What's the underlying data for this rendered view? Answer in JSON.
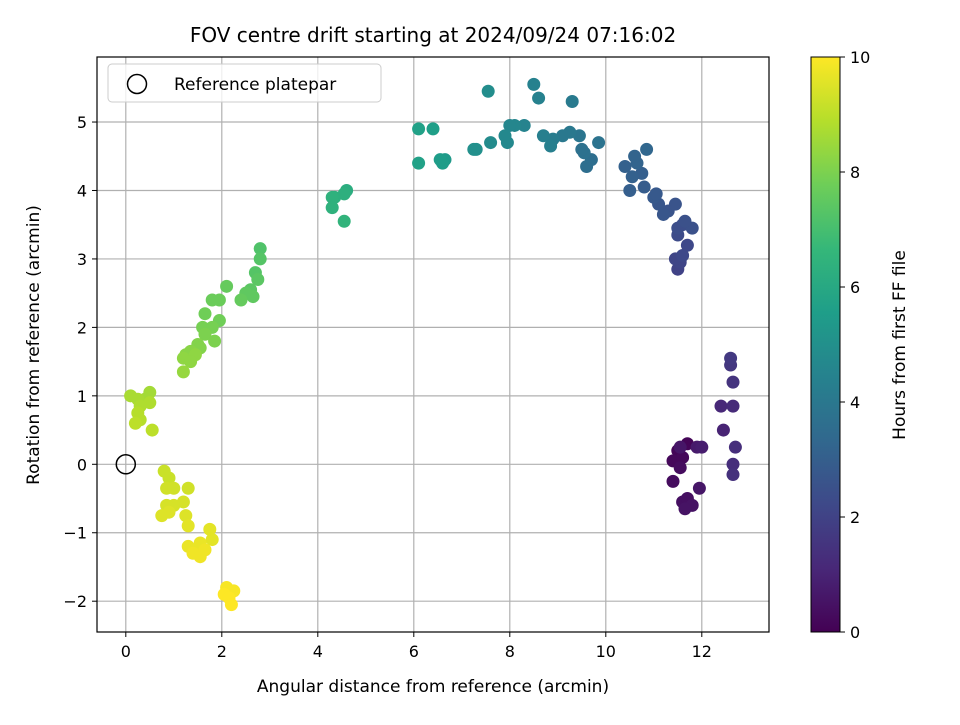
{
  "chart_data": {
    "type": "scatter",
    "title": "FOV centre drift starting at 2024/09/24 07:16:02",
    "xlabel": "Angular distance from reference (arcmin)",
    "ylabel": "Rotation from reference (arcmin)",
    "xlim": [
      -0.6,
      13.4
    ],
    "ylim": [
      -2.45,
      5.95
    ],
    "xticks": [
      0,
      2,
      4,
      6,
      8,
      10,
      12
    ],
    "yticks": [
      -2,
      -1,
      0,
      1,
      2,
      3,
      4,
      5
    ],
    "grid": true,
    "legend": {
      "location": "upper-left",
      "entries": [
        "Reference platepar"
      ]
    },
    "reference_point": {
      "x": 0,
      "y": 0,
      "label": "Reference platepar"
    },
    "colorbar": {
      "label": "Hours from first FF file",
      "range": [
        0,
        10
      ],
      "ticks": [
        0,
        2,
        4,
        6,
        8,
        10
      ],
      "colormap": "viridis",
      "colormap_stops": [
        "#440154",
        "#482878",
        "#3e4989",
        "#31688e",
        "#26828e",
        "#1f9e89",
        "#35b779",
        "#6ece58",
        "#b5de2b",
        "#fde725"
      ]
    },
    "series": [
      {
        "points": [
          [
            11.5,
            0.2,
            0.1
          ],
          [
            11.7,
            0.3,
            0.1
          ],
          [
            11.4,
            0.05,
            0.2
          ],
          [
            11.6,
            0.1,
            0.2
          ],
          [
            11.55,
            -0.05,
            0.3
          ],
          [
            11.4,
            -0.25,
            0.3
          ],
          [
            11.6,
            -0.55,
            0.4
          ],
          [
            11.7,
            -0.5,
            0.4
          ],
          [
            11.8,
            -0.6,
            0.5
          ],
          [
            11.65,
            -0.65,
            0.5
          ],
          [
            11.55,
            0.25,
            0.6
          ],
          [
            11.95,
            -0.35,
            0.6
          ],
          [
            11.9,
            0.25,
            0.7
          ],
          [
            12.0,
            0.25,
            0.8
          ],
          [
            12.45,
            0.5,
            1.0
          ],
          [
            12.4,
            0.85,
            1.1
          ],
          [
            12.65,
            0.85,
            1.2
          ],
          [
            12.7,
            0.25,
            1.3
          ],
          [
            12.65,
            0.0,
            1.3
          ],
          [
            12.65,
            -0.15,
            1.4
          ],
          [
            12.65,
            1.2,
            1.5
          ],
          [
            12.6,
            1.45,
            1.6
          ],
          [
            12.6,
            1.55,
            1.7
          ],
          [
            11.5,
            2.85,
            2.0
          ],
          [
            11.55,
            2.95,
            2.1
          ],
          [
            11.45,
            3.0,
            2.1
          ],
          [
            11.6,
            3.05,
            2.2
          ],
          [
            11.7,
            3.2,
            2.2
          ],
          [
            11.5,
            3.35,
            2.3
          ],
          [
            11.5,
            3.45,
            2.4
          ],
          [
            11.6,
            3.5,
            2.4
          ],
          [
            11.8,
            3.45,
            2.5
          ],
          [
            11.65,
            3.55,
            2.5
          ],
          [
            11.3,
            3.7,
            2.6
          ],
          [
            11.45,
            3.8,
            2.6
          ],
          [
            11.2,
            3.65,
            2.7
          ],
          [
            11.1,
            3.8,
            2.7
          ],
          [
            11.0,
            3.9,
            2.8
          ],
          [
            11.05,
            3.95,
            2.8
          ],
          [
            10.8,
            4.05,
            2.9
          ],
          [
            10.5,
            4.0,
            3.0
          ],
          [
            10.75,
            4.25,
            3.0
          ],
          [
            10.55,
            4.2,
            3.1
          ],
          [
            10.4,
            4.35,
            3.1
          ],
          [
            10.65,
            4.4,
            3.2
          ],
          [
            10.6,
            4.5,
            3.2
          ],
          [
            10.85,
            4.6,
            3.3
          ],
          [
            9.6,
            4.35,
            3.6
          ],
          [
            9.7,
            4.45,
            3.6
          ],
          [
            9.55,
            4.55,
            3.7
          ],
          [
            9.5,
            4.6,
            3.7
          ],
          [
            9.85,
            4.7,
            3.8
          ],
          [
            9.45,
            4.8,
            3.9
          ],
          [
            9.25,
            4.85,
            4.0
          ],
          [
            9.1,
            4.8,
            4.0
          ],
          [
            9.3,
            5.3,
            4.1
          ],
          [
            8.9,
            4.75,
            4.2
          ],
          [
            8.85,
            4.65,
            4.3
          ],
          [
            8.7,
            4.8,
            4.3
          ],
          [
            8.6,
            5.35,
            4.4
          ],
          [
            8.5,
            5.55,
            4.4
          ],
          [
            8.3,
            4.95,
            4.5
          ],
          [
            8.1,
            4.95,
            4.6
          ],
          [
            8.0,
            4.95,
            4.6
          ],
          [
            7.9,
            4.8,
            4.7
          ],
          [
            7.95,
            4.7,
            4.7
          ],
          [
            7.6,
            4.7,
            4.8
          ],
          [
            7.55,
            5.45,
            4.9
          ],
          [
            7.3,
            4.6,
            5.0
          ],
          [
            7.25,
            4.6,
            5.0
          ],
          [
            6.65,
            4.45,
            5.4
          ],
          [
            6.6,
            4.4,
            5.5
          ],
          [
            6.55,
            4.45,
            5.5
          ],
          [
            6.4,
            4.9,
            5.6
          ],
          [
            6.1,
            4.9,
            5.7
          ],
          [
            6.1,
            4.4,
            5.7
          ],
          [
            4.6,
            4.0,
            6.2
          ],
          [
            4.55,
            3.95,
            6.3
          ],
          [
            4.35,
            3.9,
            6.3
          ],
          [
            4.3,
            3.9,
            6.4
          ],
          [
            4.3,
            3.75,
            6.4
          ],
          [
            4.55,
            3.55,
            6.5
          ],
          [
            2.8,
            3.15,
            7.2
          ],
          [
            2.8,
            3.0,
            7.3
          ],
          [
            2.7,
            2.8,
            7.3
          ],
          [
            2.75,
            2.7,
            7.4
          ],
          [
            2.6,
            2.55,
            7.4
          ],
          [
            2.65,
            2.45,
            7.5
          ],
          [
            2.5,
            2.5,
            7.5
          ],
          [
            2.4,
            2.4,
            7.6
          ],
          [
            2.1,
            2.6,
            7.6
          ],
          [
            1.95,
            2.4,
            7.7
          ],
          [
            1.8,
            2.4,
            7.7
          ],
          [
            1.95,
            2.1,
            7.8
          ],
          [
            1.65,
            2.2,
            7.8
          ],
          [
            1.8,
            2.0,
            7.9
          ],
          [
            1.6,
            2.0,
            7.9
          ],
          [
            1.65,
            1.9,
            8.0
          ],
          [
            1.85,
            1.8,
            8.0
          ],
          [
            1.5,
            1.75,
            8.1
          ],
          [
            1.55,
            1.7,
            8.1
          ],
          [
            1.35,
            1.65,
            8.2
          ],
          [
            1.25,
            1.6,
            8.2
          ],
          [
            1.45,
            1.6,
            8.3
          ],
          [
            1.2,
            1.55,
            8.3
          ],
          [
            1.35,
            1.5,
            8.3
          ],
          [
            1.2,
            1.35,
            8.4
          ],
          [
            0.5,
            1.05,
            8.6
          ],
          [
            0.4,
            0.95,
            8.6
          ],
          [
            0.25,
            0.95,
            8.7
          ],
          [
            0.1,
            1.0,
            8.7
          ],
          [
            0.5,
            0.9,
            8.8
          ],
          [
            0.3,
            0.85,
            8.8
          ],
          [
            0.25,
            0.75,
            8.9
          ],
          [
            0.3,
            0.65,
            8.9
          ],
          [
            0.2,
            0.6,
            9.0
          ],
          [
            0.55,
            0.5,
            9.0
          ],
          [
            0.8,
            -0.1,
            9.2
          ],
          [
            0.9,
            -0.2,
            9.2
          ],
          [
            0.85,
            -0.35,
            9.3
          ],
          [
            1.0,
            -0.35,
            9.3
          ],
          [
            1.3,
            -0.35,
            9.3
          ],
          [
            1.2,
            -0.55,
            9.4
          ],
          [
            1.0,
            -0.6,
            9.4
          ],
          [
            0.85,
            -0.6,
            9.4
          ],
          [
            0.9,
            -0.7,
            9.5
          ],
          [
            0.75,
            -0.75,
            9.5
          ],
          [
            1.25,
            -0.75,
            9.5
          ],
          [
            1.3,
            -0.9,
            9.6
          ],
          [
            1.75,
            -0.95,
            9.6
          ],
          [
            1.8,
            -1.1,
            9.6
          ],
          [
            1.55,
            -1.15,
            9.7
          ],
          [
            1.3,
            -1.2,
            9.7
          ],
          [
            1.45,
            -1.25,
            9.7
          ],
          [
            1.65,
            -1.25,
            9.8
          ],
          [
            1.4,
            -1.3,
            9.8
          ],
          [
            1.55,
            -1.35,
            9.8
          ],
          [
            2.1,
            -1.8,
            9.9
          ],
          [
            2.25,
            -1.85,
            9.9
          ],
          [
            2.05,
            -1.9,
            10.0
          ],
          [
            2.15,
            -1.95,
            10.0
          ],
          [
            2.2,
            -2.05,
            10.0
          ]
        ]
      }
    ]
  }
}
